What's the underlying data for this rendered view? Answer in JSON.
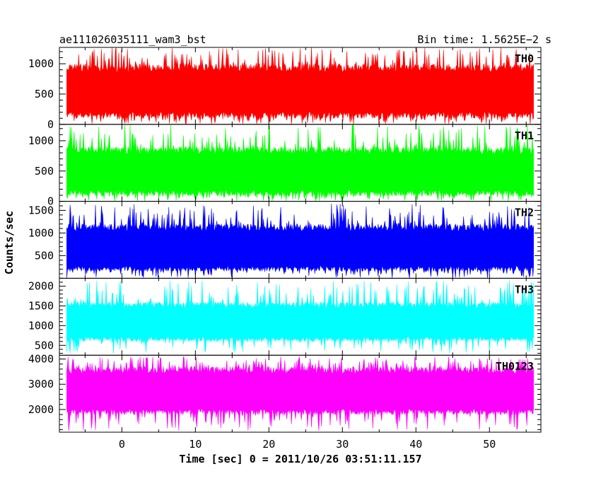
{
  "header": {
    "left": "ae111026035111_wam3_bst",
    "right": "Bin time: 1.5625E−2 s"
  },
  "chart_data": {
    "type": "line",
    "title": "ae111026035111_wam3_bst",
    "xlabel": "Time [sec] 0 = 2011/10/26 03:51:11.157",
    "ylabel": "Counts/sec",
    "xlim": [
      -8.5,
      57
    ],
    "x_range": [
      -7.5,
      56
    ],
    "x_ticks": [
      "0",
      "10",
      "20",
      "30",
      "40",
      "50"
    ],
    "x_tick_values": [
      0,
      10,
      20,
      30,
      40,
      50
    ],
    "grid": false,
    "panels": [
      {
        "name": "TH0",
        "color": "#ff0000",
        "ylim": [
          0,
          1270
        ],
        "y_ticks": [
          0,
          500,
          1000
        ],
        "typ_low": 100,
        "typ_high": 1000,
        "min": 0,
        "max": 1270
      },
      {
        "name": "TH1",
        "color": "#00ff00",
        "ylim": [
          0,
          1270
        ],
        "y_ticks": [
          0,
          500,
          1000
        ],
        "typ_low": 90,
        "typ_high": 900,
        "min": 0,
        "max": 1270
      },
      {
        "name": "TH2",
        "color": "#0000ff",
        "ylim": [
          0,
          1700
        ],
        "y_ticks": [
          500,
          1000,
          1500
        ],
        "typ_low": 150,
        "typ_high": 1200,
        "min": 0,
        "max": 1650
      },
      {
        "name": "TH3",
        "color": "#00ffff",
        "ylim": [
          250,
          2200
        ],
        "y_ticks": [
          500,
          1000,
          1500,
          2000
        ],
        "typ_low": 600,
        "typ_high": 1600,
        "min": 300,
        "max": 2150
      },
      {
        "name": "TH0123",
        "color": "#ff00ff",
        "ylim": [
          1100,
          4150
        ],
        "y_ticks": [
          2000,
          3000,
          4000
        ],
        "typ_low": 1800,
        "typ_high": 3700,
        "min": 1150,
        "max": 4100
      }
    ]
  }
}
